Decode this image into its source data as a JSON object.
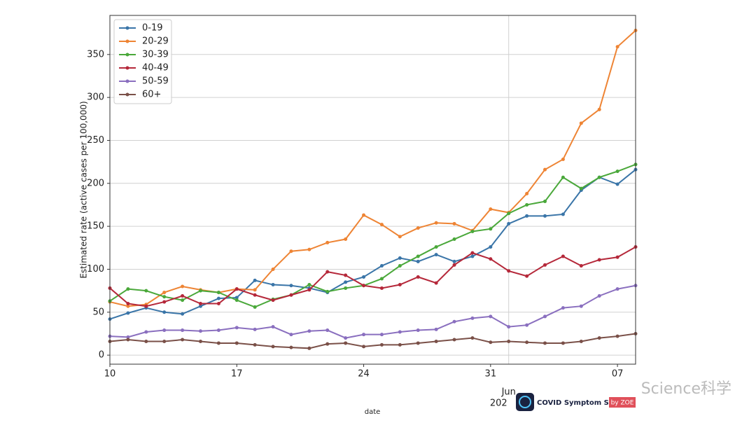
{
  "chart_data": {
    "type": "line",
    "ylabel": "Estimated rate (active cases per 100,000)",
    "xlabel": "date",
    "categories": [
      "10",
      null,
      null,
      null,
      null,
      null,
      null,
      "17",
      null,
      null,
      null,
      null,
      null,
      null,
      "24",
      null,
      null,
      null,
      null,
      null,
      null,
      "31",
      null,
      null,
      null,
      null,
      null,
      null,
      "07",
      null
    ],
    "month_label": "Jun",
    "year_label": "202",
    "ylim": [
      -10.5,
      395.5
    ],
    "yticks": [
      0,
      50,
      100,
      150,
      200,
      250,
      300,
      350
    ],
    "grid": true,
    "legend": "upper left",
    "series": [
      {
        "name": "0-19",
        "color": "#3a75a8",
        "values": [
          42,
          49,
          55,
          50,
          48,
          57,
          66,
          67,
          87,
          82,
          81,
          78,
          73,
          85,
          91,
          104,
          113,
          109,
          117,
          109,
          115,
          126,
          153,
          162,
          162,
          164,
          192,
          207,
          199,
          216
        ]
      },
      {
        "name": "20-29",
        "color": "#ee8434",
        "values": [
          62,
          57,
          59,
          73,
          80,
          76,
          73,
          77,
          76,
          100,
          121,
          123,
          131,
          135,
          163,
          152,
          138,
          148,
          154,
          153,
          145,
          170,
          166,
          188,
          216,
          228,
          270,
          286,
          359,
          378
        ]
      },
      {
        "name": "30-39",
        "color": "#4aa83a",
        "values": [
          63,
          77,
          75,
          68,
          64,
          75,
          73,
          64,
          56,
          65,
          70,
          82,
          74,
          78,
          81,
          89,
          104,
          115,
          126,
          135,
          144,
          147,
          165,
          175,
          179,
          207,
          194,
          207,
          214,
          222
        ]
      },
      {
        "name": "40-49",
        "color": "#b5283a",
        "values": [
          78,
          60,
          57,
          62,
          69,
          60,
          60,
          77,
          70,
          64,
          70,
          76,
          97,
          93,
          81,
          78,
          82,
          91,
          84,
          105,
          119,
          112,
          98,
          92,
          105,
          115,
          104,
          111,
          114,
          126
        ]
      },
      {
        "name": "50-59",
        "color": "#8a6fbf",
        "values": [
          22,
          21,
          27,
          29,
          29,
          28,
          29,
          32,
          30,
          33,
          24,
          28,
          29,
          20,
          24,
          24,
          27,
          29,
          30,
          39,
          43,
          45,
          33,
          35,
          45,
          55,
          57,
          69,
          77,
          81
        ]
      },
      {
        "name": "60+",
        "color": "#7a5048",
        "values": [
          16,
          18,
          16,
          16,
          18,
          16,
          14,
          14,
          12,
          10,
          9,
          8,
          13,
          14,
          10,
          12,
          12,
          14,
          16,
          18,
          20,
          15,
          16,
          15,
          14,
          14,
          16,
          20,
          22,
          25
        ]
      }
    ]
  },
  "logo": {
    "title": "COVID Symptom Study",
    "brand": "by ZOE"
  },
  "watermark": "Science科学"
}
